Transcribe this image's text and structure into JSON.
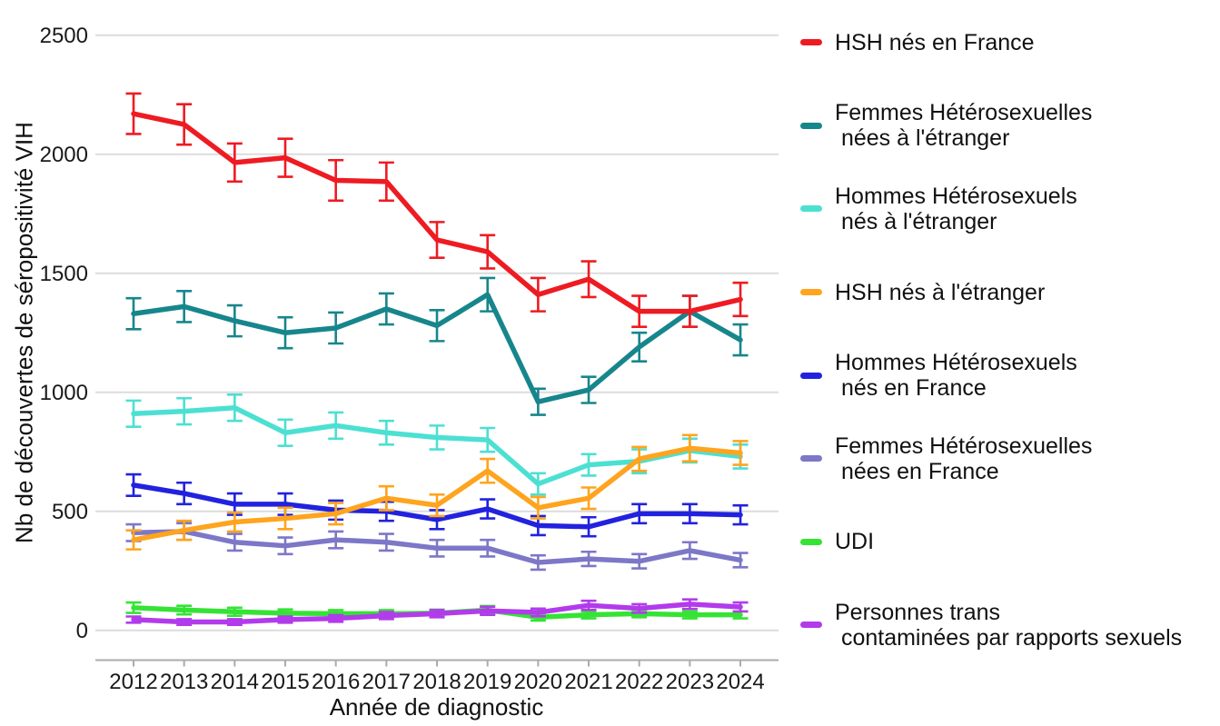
{
  "chart_data": {
    "type": "line",
    "xlabel": "Année de diagnostic",
    "ylabel": "Nb de découvertes de séropositivité VIH",
    "x": [
      2012,
      2013,
      2014,
      2015,
      2016,
      2017,
      2018,
      2019,
      2020,
      2021,
      2022,
      2023,
      2024
    ],
    "yticks": [
      0,
      500,
      1000,
      1500,
      2000,
      2500
    ],
    "ylim": [
      0,
      2500
    ],
    "grid": true,
    "legend_position": "right",
    "error_bars": true,
    "series": [
      {
        "name": "HSH nés en France",
        "label_lines": [
          "HSH nés en France"
        ],
        "color": "#EE1B22",
        "values": [
          2170,
          2125,
          1965,
          1985,
          1890,
          1885,
          1640,
          1590,
          1410,
          1475,
          1340,
          1340,
          1390
        ],
        "err": [
          85,
          85,
          80,
          80,
          85,
          80,
          75,
          70,
          70,
          75,
          65,
          65,
          70
        ]
      },
      {
        "name": "Femmes Hétérosexuelles nées à l'étranger",
        "label_lines": [
          "Femmes Hétérosexuelles",
          " nées à l'étranger"
        ],
        "color": "#17868C",
        "values": [
          1330,
          1360,
          1300,
          1250,
          1270,
          1350,
          1280,
          1410,
          960,
          1010,
          1190,
          1340,
          1220
        ],
        "err": [
          65,
          65,
          65,
          65,
          65,
          65,
          65,
          70,
          55,
          55,
          60,
          65,
          65
        ]
      },
      {
        "name": "Hommes Hétérosexuels nés à l'étranger",
        "label_lines": [
          "Hommes Hétérosexuels",
          " nés à l'étranger"
        ],
        "color": "#4CE0D2",
        "values": [
          910,
          920,
          935,
          830,
          860,
          830,
          810,
          800,
          615,
          695,
          710,
          755,
          730
        ],
        "err": [
          55,
          55,
          55,
          55,
          55,
          50,
          50,
          50,
          45,
          45,
          50,
          50,
          50
        ]
      },
      {
        "name": "HSH nés à l'étranger",
        "label_lines": [
          "HSH nés à l'étranger"
        ],
        "color": "#FFA41E",
        "values": [
          380,
          420,
          455,
          470,
          490,
          555,
          525,
          670,
          515,
          555,
          720,
          765,
          745
        ],
        "err": [
          40,
          40,
          40,
          45,
          45,
          50,
          45,
          50,
          45,
          45,
          50,
          55,
          50
        ]
      },
      {
        "name": "Hommes Hétérosexuels nés en France",
        "label_lines": [
          "Hommes Hétérosexuels",
          " nés en France"
        ],
        "color": "#2222DE",
        "values": [
          610,
          575,
          530,
          530,
          505,
          500,
          465,
          510,
          440,
          435,
          490,
          490,
          485
        ],
        "err": [
          45,
          45,
          45,
          45,
          40,
          40,
          40,
          40,
          40,
          40,
          40,
          40,
          40
        ]
      },
      {
        "name": "Femmes Hétérosexuelles nées en France",
        "label_lines": [
          "Femmes Hétérosexuelles",
          " nées en France"
        ],
        "color": "#7D77C8",
        "values": [
          410,
          415,
          370,
          355,
          380,
          370,
          345,
          345,
          285,
          300,
          290,
          335,
          295
        ],
        "err": [
          35,
          35,
          35,
          35,
          35,
          35,
          35,
          35,
          30,
          30,
          30,
          35,
          30
        ]
      },
      {
        "name": "UDI",
        "label_lines": [
          "UDI"
        ],
        "color": "#35E335",
        "values": [
          95,
          85,
          78,
          72,
          70,
          70,
          72,
          85,
          55,
          65,
          70,
          65,
          65
        ],
        "err": [
          22,
          18,
          17,
          16,
          15,
          15,
          15,
          17,
          14,
          15,
          15,
          15,
          15
        ]
      },
      {
        "name": "Personnes trans contaminées par rapports sexuels",
        "label_lines": [
          "Personnes trans",
          " contaminées par rapports sexuels"
        ],
        "color": "#B23BEC",
        "values": [
          45,
          35,
          35,
          45,
          50,
          62,
          70,
          82,
          75,
          105,
          92,
          110,
          98
        ],
        "err": [
          13,
          12,
          12,
          13,
          14,
          15,
          15,
          17,
          16,
          19,
          18,
          20,
          19
        ]
      }
    ]
  }
}
